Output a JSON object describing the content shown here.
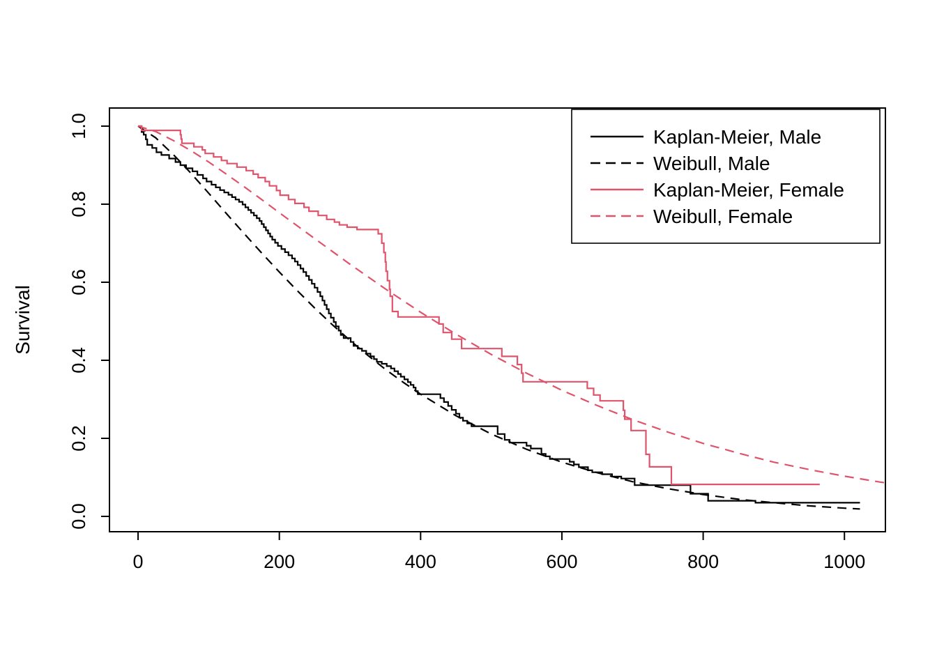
{
  "figure": {
    "background": "#ffffff",
    "description": "Kaplan-Meier and Weibull survival curves by sex"
  },
  "chart_data": {
    "type": "line",
    "title": "",
    "xlabel": "",
    "ylabel": "Survival",
    "x_ticks": [
      0,
      200,
      400,
      600,
      800,
      1000
    ],
    "x_tick_labels": [
      "0",
      "200",
      "400",
      "600",
      "800",
      "1000"
    ],
    "y_ticks": [
      0.0,
      0.2,
      0.4,
      0.6,
      0.8,
      1.0
    ],
    "y_tick_labels": [
      "0.0",
      "0.2",
      "0.4",
      "0.6",
      "0.8",
      "1.0"
    ],
    "xlim": [
      -40.5,
      1058
    ],
    "ylim": [
      -0.0393,
      1.0464
    ],
    "grid": false,
    "axis_color": "#000000",
    "colors": {
      "male": "#000000",
      "female": "#DF536B"
    },
    "legend": {
      "position": "topright",
      "border": true,
      "entries": [
        {
          "label": "Kaplan-Meier, Male",
          "color": "#000000",
          "line": "solid"
        },
        {
          "label": "Weibull, Male",
          "color": "#000000",
          "line": "dashed"
        },
        {
          "label": "Kaplan-Meier, Female",
          "color": "#DF536B",
          "line": "solid"
        },
        {
          "label": "Weibull, Female",
          "color": "#DF536B",
          "line": "dashed"
        }
      ]
    },
    "series": [
      {
        "name": "Kaplan-Meier, Male",
        "color": "#000000",
        "line": "solid",
        "curve": "step",
        "points": [
          [
            0,
            1.0
          ],
          [
            5,
            0.985
          ],
          [
            8,
            0.978
          ],
          [
            11,
            0.966
          ],
          [
            13,
            0.952
          ],
          [
            20,
            0.944
          ],
          [
            26,
            0.933
          ],
          [
            33,
            0.926
          ],
          [
            44,
            0.917
          ],
          [
            53,
            0.908
          ],
          [
            60,
            0.9
          ],
          [
            68,
            0.892
          ],
          [
            77,
            0.884
          ],
          [
            84,
            0.875
          ],
          [
            92,
            0.866
          ],
          [
            97,
            0.858
          ],
          [
            104,
            0.85
          ],
          [
            110,
            0.843
          ],
          [
            116,
            0.836
          ],
          [
            122,
            0.83
          ],
          [
            128,
            0.824
          ],
          [
            133,
            0.818
          ],
          [
            138,
            0.812
          ],
          [
            143,
            0.806
          ],
          [
            148,
            0.799
          ],
          [
            152,
            0.792
          ],
          [
            156,
            0.785
          ],
          [
            160,
            0.778
          ],
          [
            164,
            0.771
          ],
          [
            168,
            0.764
          ],
          [
            172,
            0.757
          ],
          [
            175,
            0.749
          ],
          [
            178,
            0.741
          ],
          [
            181,
            0.733
          ],
          [
            184,
            0.725
          ],
          [
            187,
            0.717
          ],
          [
            190,
            0.709
          ],
          [
            194,
            0.701
          ],
          [
            198,
            0.693
          ],
          [
            203,
            0.685
          ],
          [
            208,
            0.677
          ],
          [
            213,
            0.669
          ],
          [
            218,
            0.661
          ],
          [
            222,
            0.653
          ],
          [
            226,
            0.644
          ],
          [
            230,
            0.635
          ],
          [
            234,
            0.626
          ],
          [
            238,
            0.616
          ],
          [
            242,
            0.606
          ],
          [
            246,
            0.596
          ],
          [
            250,
            0.586
          ],
          [
            254,
            0.575
          ],
          [
            258,
            0.564
          ],
          [
            261,
            0.553
          ],
          [
            264,
            0.542
          ],
          [
            267,
            0.531
          ],
          [
            270,
            0.52
          ],
          [
            273,
            0.509
          ],
          [
            277,
            0.498
          ],
          [
            280,
            0.487
          ],
          [
            284,
            0.476
          ],
          [
            287,
            0.465
          ],
          [
            291,
            0.457
          ],
          [
            301,
            0.447
          ],
          [
            305,
            0.437
          ],
          [
            311,
            0.43
          ],
          [
            317,
            0.424
          ],
          [
            323,
            0.417
          ],
          [
            329,
            0.41
          ],
          [
            334,
            0.403
          ],
          [
            338,
            0.396
          ],
          [
            345,
            0.391
          ],
          [
            352,
            0.385
          ],
          [
            358,
            0.379
          ],
          [
            363,
            0.372
          ],
          [
            368,
            0.365
          ],
          [
            372,
            0.358
          ],
          [
            377,
            0.351
          ],
          [
            382,
            0.344
          ],
          [
            386,
            0.337
          ],
          [
            390,
            0.33
          ],
          [
            393,
            0.321
          ],
          [
            396,
            0.313
          ],
          [
            428,
            0.303
          ],
          [
            433,
            0.293
          ],
          [
            439,
            0.283
          ],
          [
            444,
            0.273
          ],
          [
            450,
            0.263
          ],
          [
            455,
            0.253
          ],
          [
            460,
            0.245
          ],
          [
            466,
            0.238
          ],
          [
            472,
            0.231
          ],
          [
            509,
            0.211
          ],
          [
            519,
            0.196
          ],
          [
            526,
            0.189
          ],
          [
            550,
            0.181
          ],
          [
            556,
            0.174
          ],
          [
            571,
            0.16
          ],
          [
            577,
            0.154
          ],
          [
            583,
            0.147
          ],
          [
            611,
            0.14
          ],
          [
            617,
            0.133
          ],
          [
            624,
            0.126
          ],
          [
            637,
            0.118
          ],
          [
            643,
            0.113
          ],
          [
            657,
            0.108
          ],
          [
            671,
            0.102
          ],
          [
            684,
            0.097
          ],
          [
            703,
            0.08
          ],
          [
            782,
            0.058
          ],
          [
            807,
            0.04
          ],
          [
            874,
            0.035
          ],
          [
            1022,
            0.035
          ]
        ]
      },
      {
        "name": "Weibull, Male",
        "color": "#000000",
        "line": "dashed",
        "curve": "smooth",
        "weibull": {
          "shape": 1.31,
          "scale": 357
        },
        "points": [
          [
            0,
            1.0
          ],
          [
            25,
            0.97
          ],
          [
            50,
            0.927
          ],
          [
            75,
            0.879
          ],
          [
            100,
            0.828
          ],
          [
            125,
            0.776
          ],
          [
            150,
            0.725
          ],
          [
            175,
            0.675
          ],
          [
            200,
            0.626
          ],
          [
            225,
            0.579
          ],
          [
            250,
            0.534
          ],
          [
            275,
            0.491
          ],
          [
            300,
            0.451
          ],
          [
            325,
            0.413
          ],
          [
            350,
            0.377
          ],
          [
            375,
            0.344
          ],
          [
            400,
            0.313
          ],
          [
            450,
            0.258
          ],
          [
            500,
            0.211
          ],
          [
            550,
            0.172
          ],
          [
            600,
            0.139
          ],
          [
            650,
            0.112
          ],
          [
            700,
            0.089
          ],
          [
            750,
            0.071
          ],
          [
            800,
            0.056
          ],
          [
            850,
            0.044
          ],
          [
            900,
            0.035
          ],
          [
            950,
            0.027
          ],
          [
            1000,
            0.021
          ],
          [
            1022,
            0.019
          ]
        ]
      },
      {
        "name": "Kaplan-Meier, Female",
        "color": "#DF536B",
        "line": "solid",
        "curve": "step",
        "points": [
          [
            0,
            1.0
          ],
          [
            5,
            0.989
          ],
          [
            60,
            0.978
          ],
          [
            61,
            0.967
          ],
          [
            62,
            0.956
          ],
          [
            79,
            0.947
          ],
          [
            91,
            0.939
          ],
          [
            95,
            0.93
          ],
          [
            107,
            0.921
          ],
          [
            118,
            0.912
          ],
          [
            126,
            0.904
          ],
          [
            140,
            0.895
          ],
          [
            153,
            0.886
          ],
          [
            163,
            0.877
          ],
          [
            170,
            0.868
          ],
          [
            180,
            0.858
          ],
          [
            186,
            0.847
          ],
          [
            196,
            0.835
          ],
          [
            201,
            0.823
          ],
          [
            213,
            0.812
          ],
          [
            222,
            0.802
          ],
          [
            235,
            0.792
          ],
          [
            242,
            0.782
          ],
          [
            255,
            0.771
          ],
          [
            267,
            0.761
          ],
          [
            278,
            0.754
          ],
          [
            285,
            0.747
          ],
          [
            296,
            0.741
          ],
          [
            310,
            0.735
          ],
          [
            340,
            0.724
          ],
          [
            345,
            0.7
          ],
          [
            348,
            0.676
          ],
          [
            350,
            0.652
          ],
          [
            351,
            0.628
          ],
          [
            353,
            0.604
          ],
          [
            356,
            0.582
          ],
          [
            357,
            0.564
          ],
          [
            360,
            0.525
          ],
          [
            368,
            0.511
          ],
          [
            426,
            0.493
          ],
          [
            432,
            0.471
          ],
          [
            444,
            0.454
          ],
          [
            458,
            0.43
          ],
          [
            515,
            0.41
          ],
          [
            537,
            0.389
          ],
          [
            543,
            0.367
          ],
          [
            545,
            0.345
          ],
          [
            636,
            0.328
          ],
          [
            645,
            0.311
          ],
          [
            654,
            0.296
          ],
          [
            687,
            0.272
          ],
          [
            689,
            0.249
          ],
          [
            698,
            0.22
          ],
          [
            719,
            0.159
          ],
          [
            724,
            0.127
          ],
          [
            755,
            0.082
          ],
          [
            965,
            0.082
          ]
        ]
      },
      {
        "name": "Weibull, Female",
        "color": "#DF536B",
        "line": "dashed",
        "curve": "smooth",
        "weibull": {
          "shape": 1.37,
          "scale": 549
        },
        "points": [
          [
            0,
            1.0
          ],
          [
            25,
            0.986
          ],
          [
            50,
            0.963
          ],
          [
            75,
            0.937
          ],
          [
            100,
            0.908
          ],
          [
            125,
            0.877
          ],
          [
            150,
            0.845
          ],
          [
            175,
            0.812
          ],
          [
            200,
            0.778
          ],
          [
            250,
            0.712
          ],
          [
            300,
            0.646
          ],
          [
            350,
            0.583
          ],
          [
            400,
            0.523
          ],
          [
            450,
            0.467
          ],
          [
            500,
            0.415
          ],
          [
            550,
            0.367
          ],
          [
            600,
            0.323
          ],
          [
            650,
            0.284
          ],
          [
            700,
            0.248
          ],
          [
            750,
            0.216
          ],
          [
            800,
            0.187
          ],
          [
            850,
            0.162
          ],
          [
            900,
            0.139
          ],
          [
            950,
            0.12
          ],
          [
            1000,
            0.103
          ],
          [
            1050,
            0.088
          ],
          [
            1058,
            0.086
          ]
        ]
      }
    ]
  }
}
